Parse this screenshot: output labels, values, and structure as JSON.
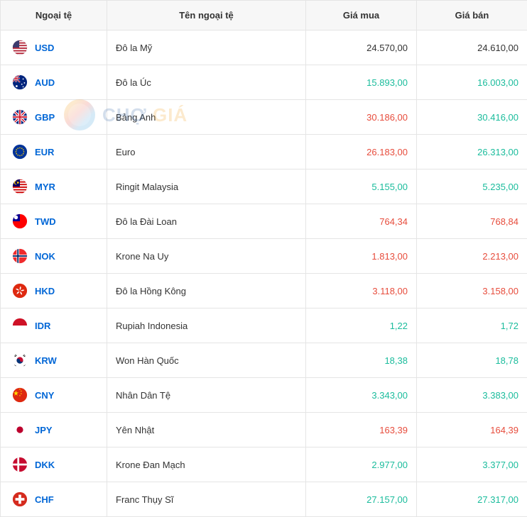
{
  "colors": {
    "header_bg": "#f7f7f7",
    "border": "#e5e5e5",
    "link": "#0066d6",
    "neutral": "#333333",
    "up": "#1abc9c",
    "down": "#e74c3c"
  },
  "watermark": {
    "text_a": "CHỢ",
    "text_b": "GIÁ"
  },
  "columns": [
    "Ngoại tệ",
    "Tên ngoại tệ",
    "Giá mua",
    "Giá bán"
  ],
  "rows": [
    {
      "code": "USD",
      "name": "Đô la Mỹ",
      "buy": "24.570,00",
      "buy_t": "neutral",
      "sell": "24.610,00",
      "sell_t": "neutral",
      "flag": "USD"
    },
    {
      "code": "AUD",
      "name": "Đô la Úc",
      "buy": "15.893,00",
      "buy_t": "up",
      "sell": "16.003,00",
      "sell_t": "up",
      "flag": "AUD"
    },
    {
      "code": "GBP",
      "name": "Bảng Anh",
      "buy": "30.186,00",
      "buy_t": "down",
      "sell": "30.416,00",
      "sell_t": "up",
      "flag": "GBP"
    },
    {
      "code": "EUR",
      "name": "Euro",
      "buy": "26.183,00",
      "buy_t": "down",
      "sell": "26.313,00",
      "sell_t": "up",
      "flag": "EUR"
    },
    {
      "code": "MYR",
      "name": "Ringit Malaysia",
      "buy": "5.155,00",
      "buy_t": "up",
      "sell": "5.235,00",
      "sell_t": "up",
      "flag": "MYR"
    },
    {
      "code": "TWD",
      "name": "Đô la Đài Loan",
      "buy": "764,34",
      "buy_t": "down",
      "sell": "768,84",
      "sell_t": "down",
      "flag": "TWD"
    },
    {
      "code": "NOK",
      "name": "Krone Na Uy",
      "buy": "1.813,00",
      "buy_t": "down",
      "sell": "2.213,00",
      "sell_t": "down",
      "flag": "NOK"
    },
    {
      "code": "HKD",
      "name": "Đô la Hồng Kông",
      "buy": "3.118,00",
      "buy_t": "down",
      "sell": "3.158,00",
      "sell_t": "down",
      "flag": "HKD"
    },
    {
      "code": "IDR",
      "name": "Rupiah Indonesia",
      "buy": "1,22",
      "buy_t": "up",
      "sell": "1,72",
      "sell_t": "up",
      "flag": "IDR"
    },
    {
      "code": "KRW",
      "name": "Won Hàn Quốc",
      "buy": "18,38",
      "buy_t": "up",
      "sell": "18,78",
      "sell_t": "up",
      "flag": "KRW"
    },
    {
      "code": "CNY",
      "name": "Nhân Dân Tệ",
      "buy": "3.343,00",
      "buy_t": "up",
      "sell": "3.383,00",
      "sell_t": "up",
      "flag": "CNY"
    },
    {
      "code": "JPY",
      "name": "Yên Nhật",
      "buy": "163,39",
      "buy_t": "down",
      "sell": "164,39",
      "sell_t": "down",
      "flag": "JPY"
    },
    {
      "code": "DKK",
      "name": "Krone Đan Mạch",
      "buy": "2.977,00",
      "buy_t": "up",
      "sell": "3.377,00",
      "sell_t": "up",
      "flag": "DKK"
    },
    {
      "code": "CHF",
      "name": "Franc Thụy Sĩ",
      "buy": "27.157,00",
      "buy_t": "up",
      "sell": "27.317,00",
      "sell_t": "up",
      "flag": "CHF"
    }
  ]
}
